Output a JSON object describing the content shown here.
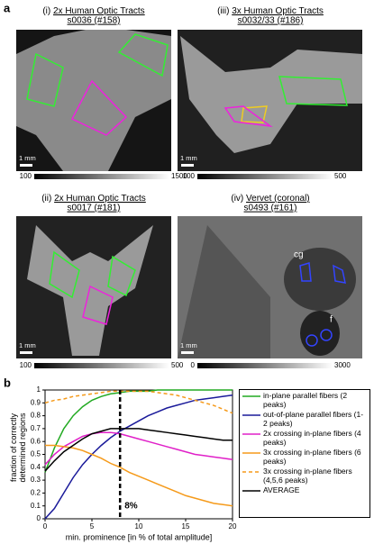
{
  "panel_a": {
    "label": "a",
    "panels": [
      {
        "tag": "(i)",
        "title": "2x Human Optic Tracts",
        "id": "s0036 (#158)",
        "scale": "1 mm",
        "colorbar": [
          100,
          1500
        ]
      },
      {
        "tag": "(iii)",
        "title": "3x Human Optic Tracts",
        "id": "s0032/33 (#186)",
        "scale": "1 mm",
        "colorbar": [
          100,
          500
        ]
      },
      {
        "tag": "(ii)",
        "title": "2x Human Optic Tracts",
        "id": "s0017 (#181)",
        "scale": "1 mm",
        "colorbar": [
          100,
          500
        ]
      },
      {
        "tag": "(iv)",
        "title": "Vervet (coronal)",
        "id": "s0493 (#161)",
        "scale": "1 mm",
        "colorbar": [
          0,
          3000
        ],
        "annotations": [
          "cg",
          "f"
        ]
      }
    ]
  },
  "chart_data": {
    "type": "line",
    "label": "b",
    "xlabel": "min. prominence [in % of total amplitude]",
    "ylabel": "fraction of correctly determined regions",
    "x": [
      0,
      1,
      2,
      3,
      4,
      5,
      6,
      7,
      8,
      9,
      10,
      11,
      12,
      13,
      14,
      15,
      16,
      17,
      18,
      19,
      20
    ],
    "xlim": [
      0,
      20
    ],
    "xticks": [
      0,
      5,
      10,
      15,
      20
    ],
    "ylim": [
      0,
      1
    ],
    "yticks": [
      0,
      0.1,
      0.2,
      0.3,
      0.4,
      0.5,
      0.6,
      0.7,
      0.8,
      0.9,
      1
    ],
    "vline": {
      "value": 8,
      "label": "8%"
    },
    "series": [
      {
        "name": "in-plane parallel fibers (2 peaks)",
        "color": "#22aa22",
        "dashed": false,
        "values": [
          0.36,
          0.55,
          0.7,
          0.8,
          0.87,
          0.92,
          0.95,
          0.97,
          0.98,
          0.99,
          0.99,
          0.99,
          1,
          1,
          1,
          1,
          1,
          1,
          1,
          1,
          1
        ]
      },
      {
        "name": "out-of-plane parallel fibers (1-2 peaks)",
        "color": "#1a1a9a",
        "dashed": false,
        "values": [
          0,
          0.08,
          0.2,
          0.32,
          0.42,
          0.5,
          0.57,
          0.63,
          0.68,
          0.72,
          0.76,
          0.8,
          0.83,
          0.86,
          0.88,
          0.9,
          0.92,
          0.93,
          0.94,
          0.95,
          0.96
        ]
      },
      {
        "name": "2x crossing in-plane fibers (4 peaks)",
        "color": "#e020c8",
        "dashed": false,
        "values": [
          0.42,
          0.5,
          0.56,
          0.6,
          0.64,
          0.66,
          0.67,
          0.67,
          0.66,
          0.64,
          0.62,
          0.6,
          0.58,
          0.56,
          0.54,
          0.52,
          0.5,
          0.49,
          0.48,
          0.47,
          0.46
        ]
      },
      {
        "name": "3x crossing in-plane fibers (6 peaks)",
        "color": "#f59a1a",
        "dashed": false,
        "values": [
          0.57,
          0.57,
          0.56,
          0.55,
          0.53,
          0.5,
          0.47,
          0.43,
          0.4,
          0.36,
          0.33,
          0.3,
          0.27,
          0.24,
          0.21,
          0.18,
          0.16,
          0.14,
          0.12,
          0.11,
          0.1
        ]
      },
      {
        "name": "3x crossing in-plane fibers (4,5,6 peaks)",
        "color": "#f59a1a",
        "dashed": true,
        "values": [
          0.9,
          0.92,
          0.93,
          0.95,
          0.96,
          0.97,
          0.98,
          0.99,
          0.99,
          0.99,
          0.99,
          0.99,
          0.98,
          0.97,
          0.96,
          0.94,
          0.92,
          0.9,
          0.88,
          0.85,
          0.82
        ]
      },
      {
        "name": "AVERAGE",
        "color": "#000000",
        "dashed": false,
        "values": [
          0.37,
          0.45,
          0.52,
          0.57,
          0.62,
          0.66,
          0.68,
          0.7,
          0.7,
          0.7,
          0.7,
          0.69,
          0.68,
          0.67,
          0.66,
          0.65,
          0.64,
          0.63,
          0.62,
          0.61,
          0.61
        ]
      }
    ]
  }
}
